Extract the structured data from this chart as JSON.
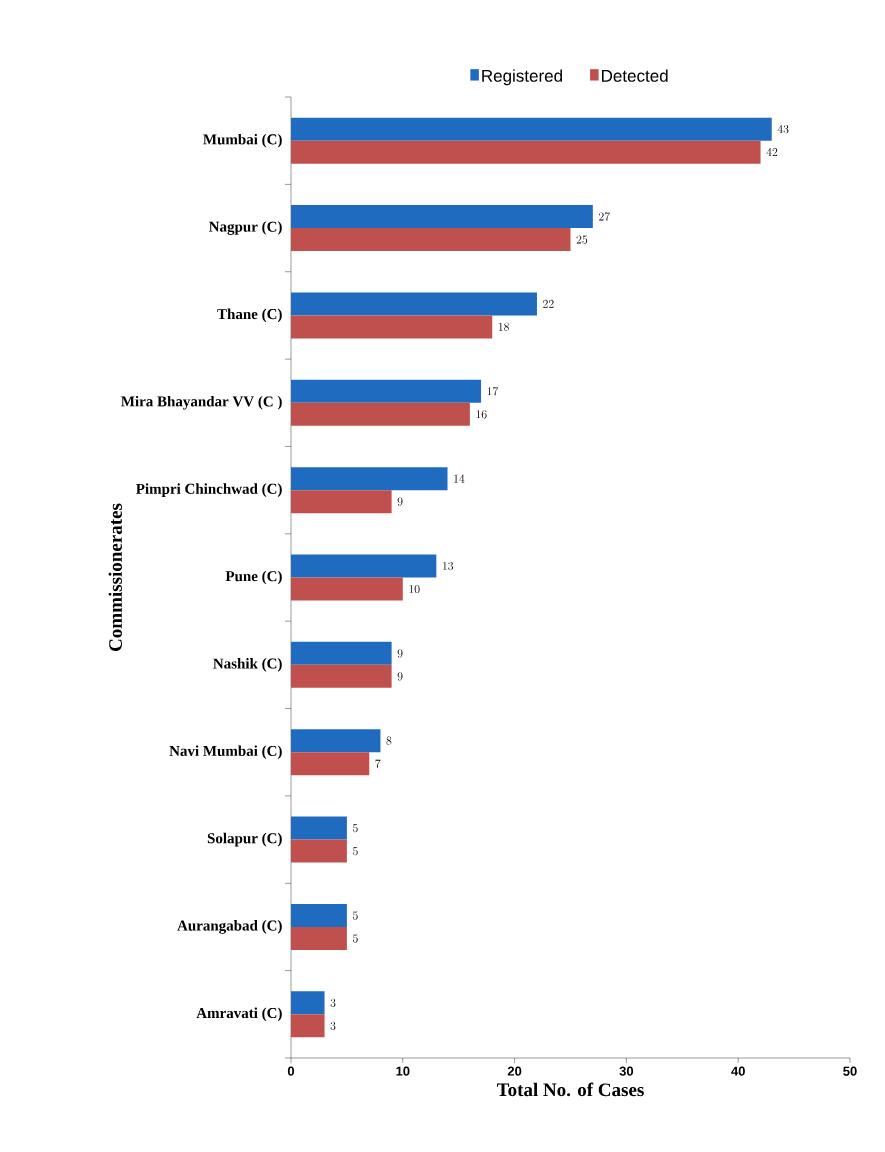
{
  "chart_data": {
    "type": "bar",
    "orientation": "horizontal",
    "categories": [
      "Mumbai (C)",
      "Nagpur (C)",
      "Thane (C)",
      "Mira Bhayandar VV (C )",
      "Pimpri Chinchwad (C)",
      "Pune (C)",
      "Nashik (C)",
      "Navi Mumbai (C)",
      "Solapur (C)",
      "Aurangabad (C)",
      "Amravati (C)"
    ],
    "series": [
      {
        "name": "Registered",
        "color": "#1f6bbf",
        "values": [
          43,
          27,
          22,
          17,
          14,
          13,
          9,
          8,
          5,
          5,
          3
        ]
      },
      {
        "name": "Detected",
        "color": "#c0504d",
        "values": [
          42,
          25,
          18,
          16,
          9,
          10,
          9,
          7,
          5,
          5,
          3
        ]
      }
    ],
    "xlabel": "Total No. of Cases",
    "ylabel": "Commissionerates",
    "xlim": [
      0,
      50
    ],
    "xticks": [
      0,
      10,
      20,
      30,
      40,
      50
    ],
    "data_labels": true,
    "legend": "top"
  }
}
